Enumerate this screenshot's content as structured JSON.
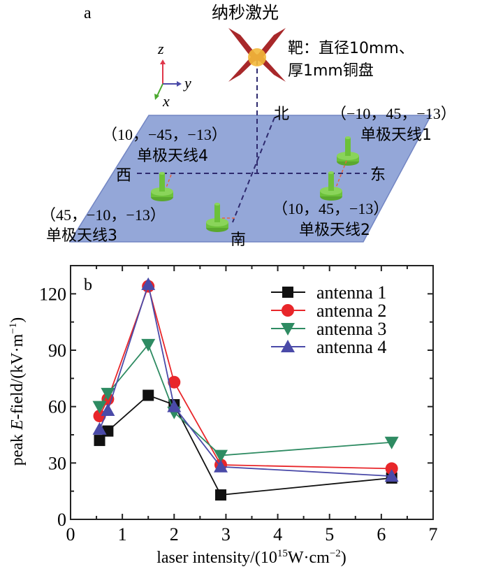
{
  "panel_a": {
    "label": "a",
    "laser_title": "纳秒激光",
    "target_line1": "靶：直径10mm、",
    "target_line2": "厚1mm铜盘",
    "axes": {
      "z": "z",
      "y": "y",
      "x": "x"
    },
    "directions": {
      "north": "北",
      "south": "南",
      "east": "东",
      "west": "西"
    },
    "antennas": [
      {
        "name": "单极天线1",
        "coords": "（−10，45，−13）"
      },
      {
        "name": "单极天线2",
        "coords": "（10，45，−13）"
      },
      {
        "name": "单极天线3",
        "coords": "（45，−10，−13）"
      },
      {
        "name": "单极天线4",
        "coords": "（10，−45，−13）"
      }
    ],
    "colors": {
      "plate": "#8fa3d6",
      "laser": "#a8282a",
      "target": "#f2b83a",
      "antenna": "#6cc13a",
      "dash": "#2e2a6e",
      "link": "#e8643c"
    }
  },
  "chart_data": {
    "type": "line",
    "panel_label": "b",
    "title": "",
    "xlabel": "laser intensity/(10¹⁵W·cm⁻²)",
    "ylabel": "peak E-field/(kV·m⁻¹)",
    "xlim": [
      0,
      7
    ],
    "ylim": [
      0,
      135
    ],
    "xticks": [
      0,
      1,
      2,
      3,
      4,
      5,
      6,
      7
    ],
    "yticks": [
      0,
      30,
      60,
      90,
      120
    ],
    "grid": false,
    "legend_position": "top-right",
    "x": [
      0.56,
      0.72,
      1.5,
      2.0,
      2.9,
      6.2
    ],
    "series": [
      {
        "name": "antenna 1",
        "marker": "square",
        "color": "#111111",
        "values": [
          42,
          47,
          66,
          61,
          13,
          22
        ]
      },
      {
        "name": "antenna 2",
        "marker": "circle",
        "color": "#e8262a",
        "values": [
          55,
          64,
          124,
          73,
          29,
          27
        ]
      },
      {
        "name": "antenna 3",
        "marker": "triangle-down",
        "color": "#2e8b62",
        "values": [
          60,
          67,
          93,
          57,
          34,
          41
        ]
      },
      {
        "name": "antenna 4",
        "marker": "triangle-up",
        "color": "#4a4aa8",
        "values": [
          48,
          58,
          125,
          60,
          28,
          23
        ]
      }
    ]
  }
}
